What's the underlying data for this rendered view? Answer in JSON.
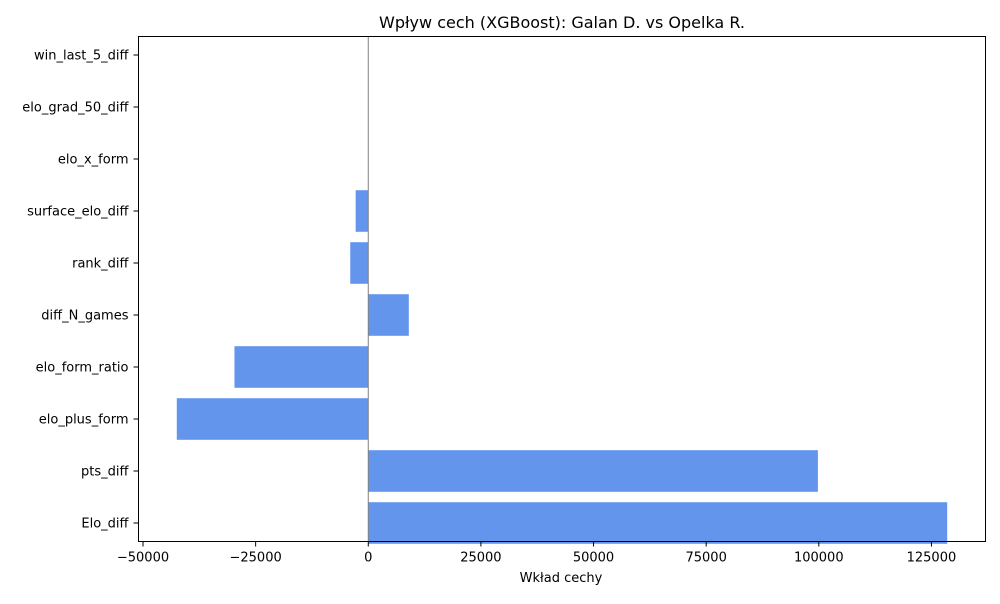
{
  "chart_data": {
    "type": "bar",
    "orientation": "horizontal",
    "title": "Wpływ cech (XGBoost): Galan D. vs Opelka R.",
    "xlabel": "Wkład cechy",
    "ylabel": "",
    "categories": [
      "Elo_diff",
      "pts_diff",
      "elo_plus_form",
      "elo_form_ratio",
      "diff_N_games",
      "rank_diff",
      "surface_elo_diff",
      "elo_x_form",
      "elo_grad_50_diff",
      "win_last_5_diff"
    ],
    "values": [
      128500,
      99800,
      -42500,
      -29700,
      9000,
      -4000,
      -2800,
      0,
      0,
      0
    ],
    "xlim": [
      -51000,
      137000
    ],
    "xticks": [
      -50000,
      -25000,
      0,
      25000,
      50000,
      75000,
      100000,
      125000
    ],
    "xtick_labels": [
      "−50000",
      "−25000",
      "0",
      "25000",
      "50000",
      "75000",
      "100000",
      "125000"
    ],
    "bar_color": "#6495ED",
    "zero_line": true,
    "grid": false
  }
}
